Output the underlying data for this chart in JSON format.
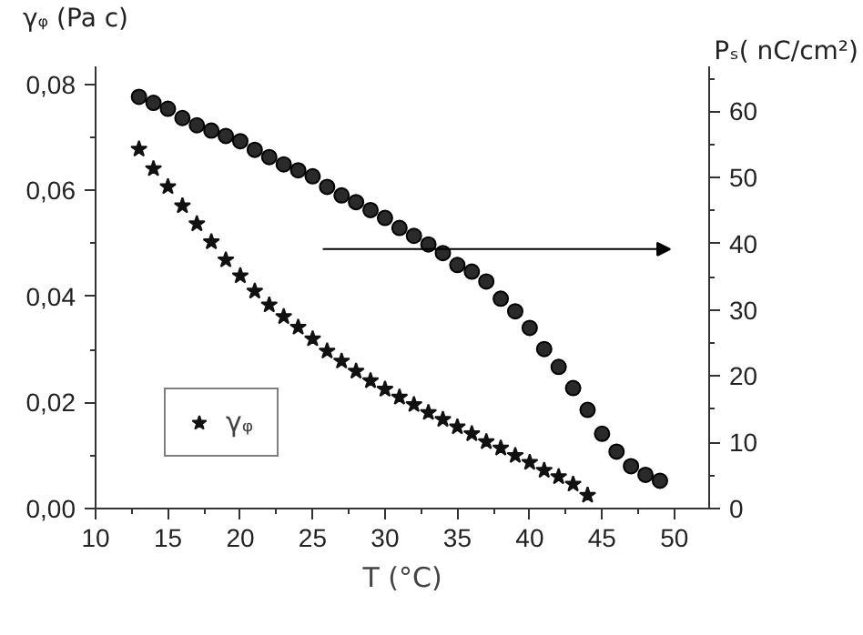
{
  "chart_data": {
    "type": "scatter",
    "xlabel": "T (°C)",
    "ylabel": "γᵩ (Pa c)",
    "y2label": "Pₛ( nC/cm²)",
    "xlim": [
      10,
      52.4
    ],
    "xticks": [
      10,
      15,
      20,
      25,
      30,
      35,
      40,
      45,
      50
    ],
    "ylim": [
      0,
      0.0834
    ],
    "yticks": [
      {
        "value": 0,
        "label": "0,00"
      },
      {
        "value": 0.02,
        "label": "0,02"
      },
      {
        "value": 0.04,
        "label": "0,04"
      },
      {
        "value": 0.06,
        "label": "0,06"
      },
      {
        "value": 0.08,
        "label": "0,08"
      }
    ],
    "y2lim": [
      0,
      66.8
    ],
    "y2ticks": [
      0,
      10,
      20,
      30,
      40,
      50,
      60
    ],
    "grid": false,
    "legend": "bottom left",
    "series": [
      {
        "name": "γᵩ",
        "color": "#111111",
        "marker": "star",
        "x": [
          13,
          14,
          15,
          16,
          17,
          18,
          19,
          20,
          21,
          22,
          23,
          24,
          25,
          26,
          27,
          28,
          29,
          30,
          31,
          32,
          33,
          34,
          35,
          36,
          37,
          38,
          39,
          40,
          41,
          42,
          43,
          44
        ],
        "values": [
          0.0678,
          0.0641,
          0.0607,
          0.0571,
          0.0537,
          0.0503,
          0.0469,
          0.0439,
          0.041,
          0.0384,
          0.0362,
          0.0342,
          0.032,
          0.0297,
          0.0278,
          0.0259,
          0.0241,
          0.0225,
          0.021,
          0.0196,
          0.0181,
          0.0168,
          0.0154,
          0.0141,
          0.0126,
          0.0114,
          0.01,
          0.0087,
          0.0072,
          0.006,
          0.0046,
          0.0025
        ]
      },
      {
        "color": "#2a2a2a",
        "marker": "circle",
        "axis": "y2",
        "x": [
          13,
          14,
          15,
          16,
          17,
          18,
          19,
          20,
          21,
          22,
          23,
          24,
          25,
          26,
          27,
          28,
          29,
          30,
          31,
          32,
          33,
          34,
          35,
          36,
          37,
          38,
          39,
          40,
          41,
          42,
          43,
          44,
          45,
          46,
          47,
          48,
          49
        ],
        "values": [
          62.2,
          61.3,
          60.4,
          59.0,
          57.9,
          57.1,
          56.3,
          55.5,
          54.2,
          53.1,
          52.0,
          51.1,
          50.2,
          48.6,
          47.3,
          46.3,
          45.1,
          43.9,
          42.4,
          41.2,
          39.9,
          38.6,
          36.8,
          35.8,
          34.3,
          31.7,
          29.8,
          27.3,
          24.1,
          21.4,
          18.2,
          14.9,
          11.3,
          8.6,
          6.4,
          5.1,
          4.2
        ]
      }
    ]
  }
}
